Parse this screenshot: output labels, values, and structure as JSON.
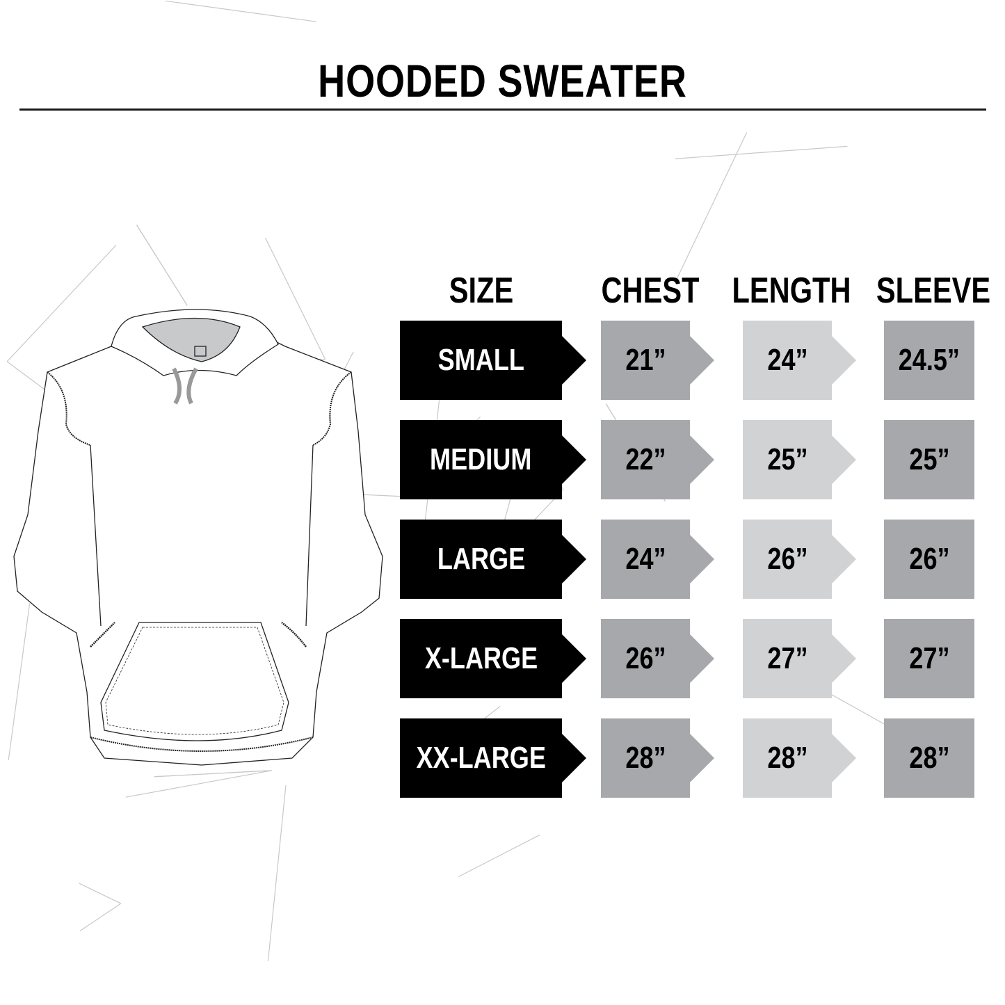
{
  "title": "HOODED SWEATER",
  "headers": {
    "size": "SIZE",
    "chest": "CHEST",
    "length": "LENGTH",
    "sleeve": "SLEEVE"
  },
  "rows": [
    {
      "size": "SMALL",
      "chest": "21”",
      "length": "24”",
      "sleeve": "24.5”"
    },
    {
      "size": "MEDIUM",
      "chest": "22”",
      "length": "25”",
      "sleeve": "25”"
    },
    {
      "size": "LARGE",
      "chest": "24”",
      "length": "26”",
      "sleeve": "26”"
    },
    {
      "size": "X-LARGE",
      "chest": "26”",
      "length": "27”",
      "sleeve": "27”"
    },
    {
      "size": "XX-LARGE",
      "chest": "28”",
      "length": "28”",
      "sleeve": "28”"
    }
  ],
  "colors": {
    "size_bg": "#000000",
    "chest_bg": "#a7a8ab",
    "length_bg": "#d1d2d4",
    "sleeve_bg": "#a7a8ab",
    "pattern": "#c8c8c8"
  },
  "illustration": "hooded-sweatshirt-line-drawing"
}
